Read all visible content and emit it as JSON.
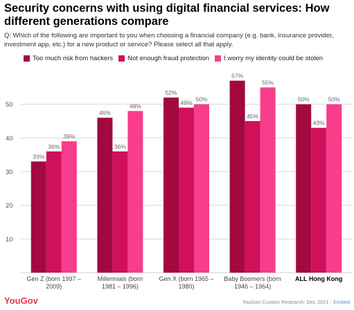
{
  "title": "Security concerns with using digital financial services: How different generations compare",
  "question": "Q: Which of the following are important to you when choosing a financial company (e.g. bank, insurance provider, investment app, etc.) for a new product or service? Please select all that apply.",
  "footer": {
    "logo": "YouGov",
    "source": "YouGov Custom Research: Dec 2021 - ",
    "embed": "Embed"
  },
  "colors": {
    "series1": "#a30840",
    "series2": "#d0105a",
    "series3": "#f73d8b",
    "grid": "#d9d9d9",
    "tick": "#555555"
  },
  "chart_data": {
    "type": "bar",
    "categories": [
      [
        "Gen Z (born 1997 –",
        "2009)"
      ],
      [
        "Millennials (born",
        "1981 – 1996)"
      ],
      [
        "Gen X (born 1965 –",
        "1980)"
      ],
      [
        "Baby Boomers (born",
        "1946 – 1964)"
      ],
      [
        "ALL Hong Kong"
      ]
    ],
    "bold_category_index": 4,
    "series": [
      {
        "name": "Too much risk from hackers",
        "values": [
          33,
          46,
          52,
          57,
          50
        ]
      },
      {
        "name": "Not enough fraud protection",
        "values": [
          36,
          36,
          49,
          45,
          43
        ]
      },
      {
        "name": "I worry my identity could be stolen",
        "values": [
          39,
          48,
          50,
          55,
          50
        ]
      }
    ],
    "value_suffix": "%",
    "yticks": [
      10,
      20,
      30,
      40,
      50
    ],
    "ylim": [
      0,
      60
    ],
    "grid": true,
    "legend_position": "top"
  }
}
